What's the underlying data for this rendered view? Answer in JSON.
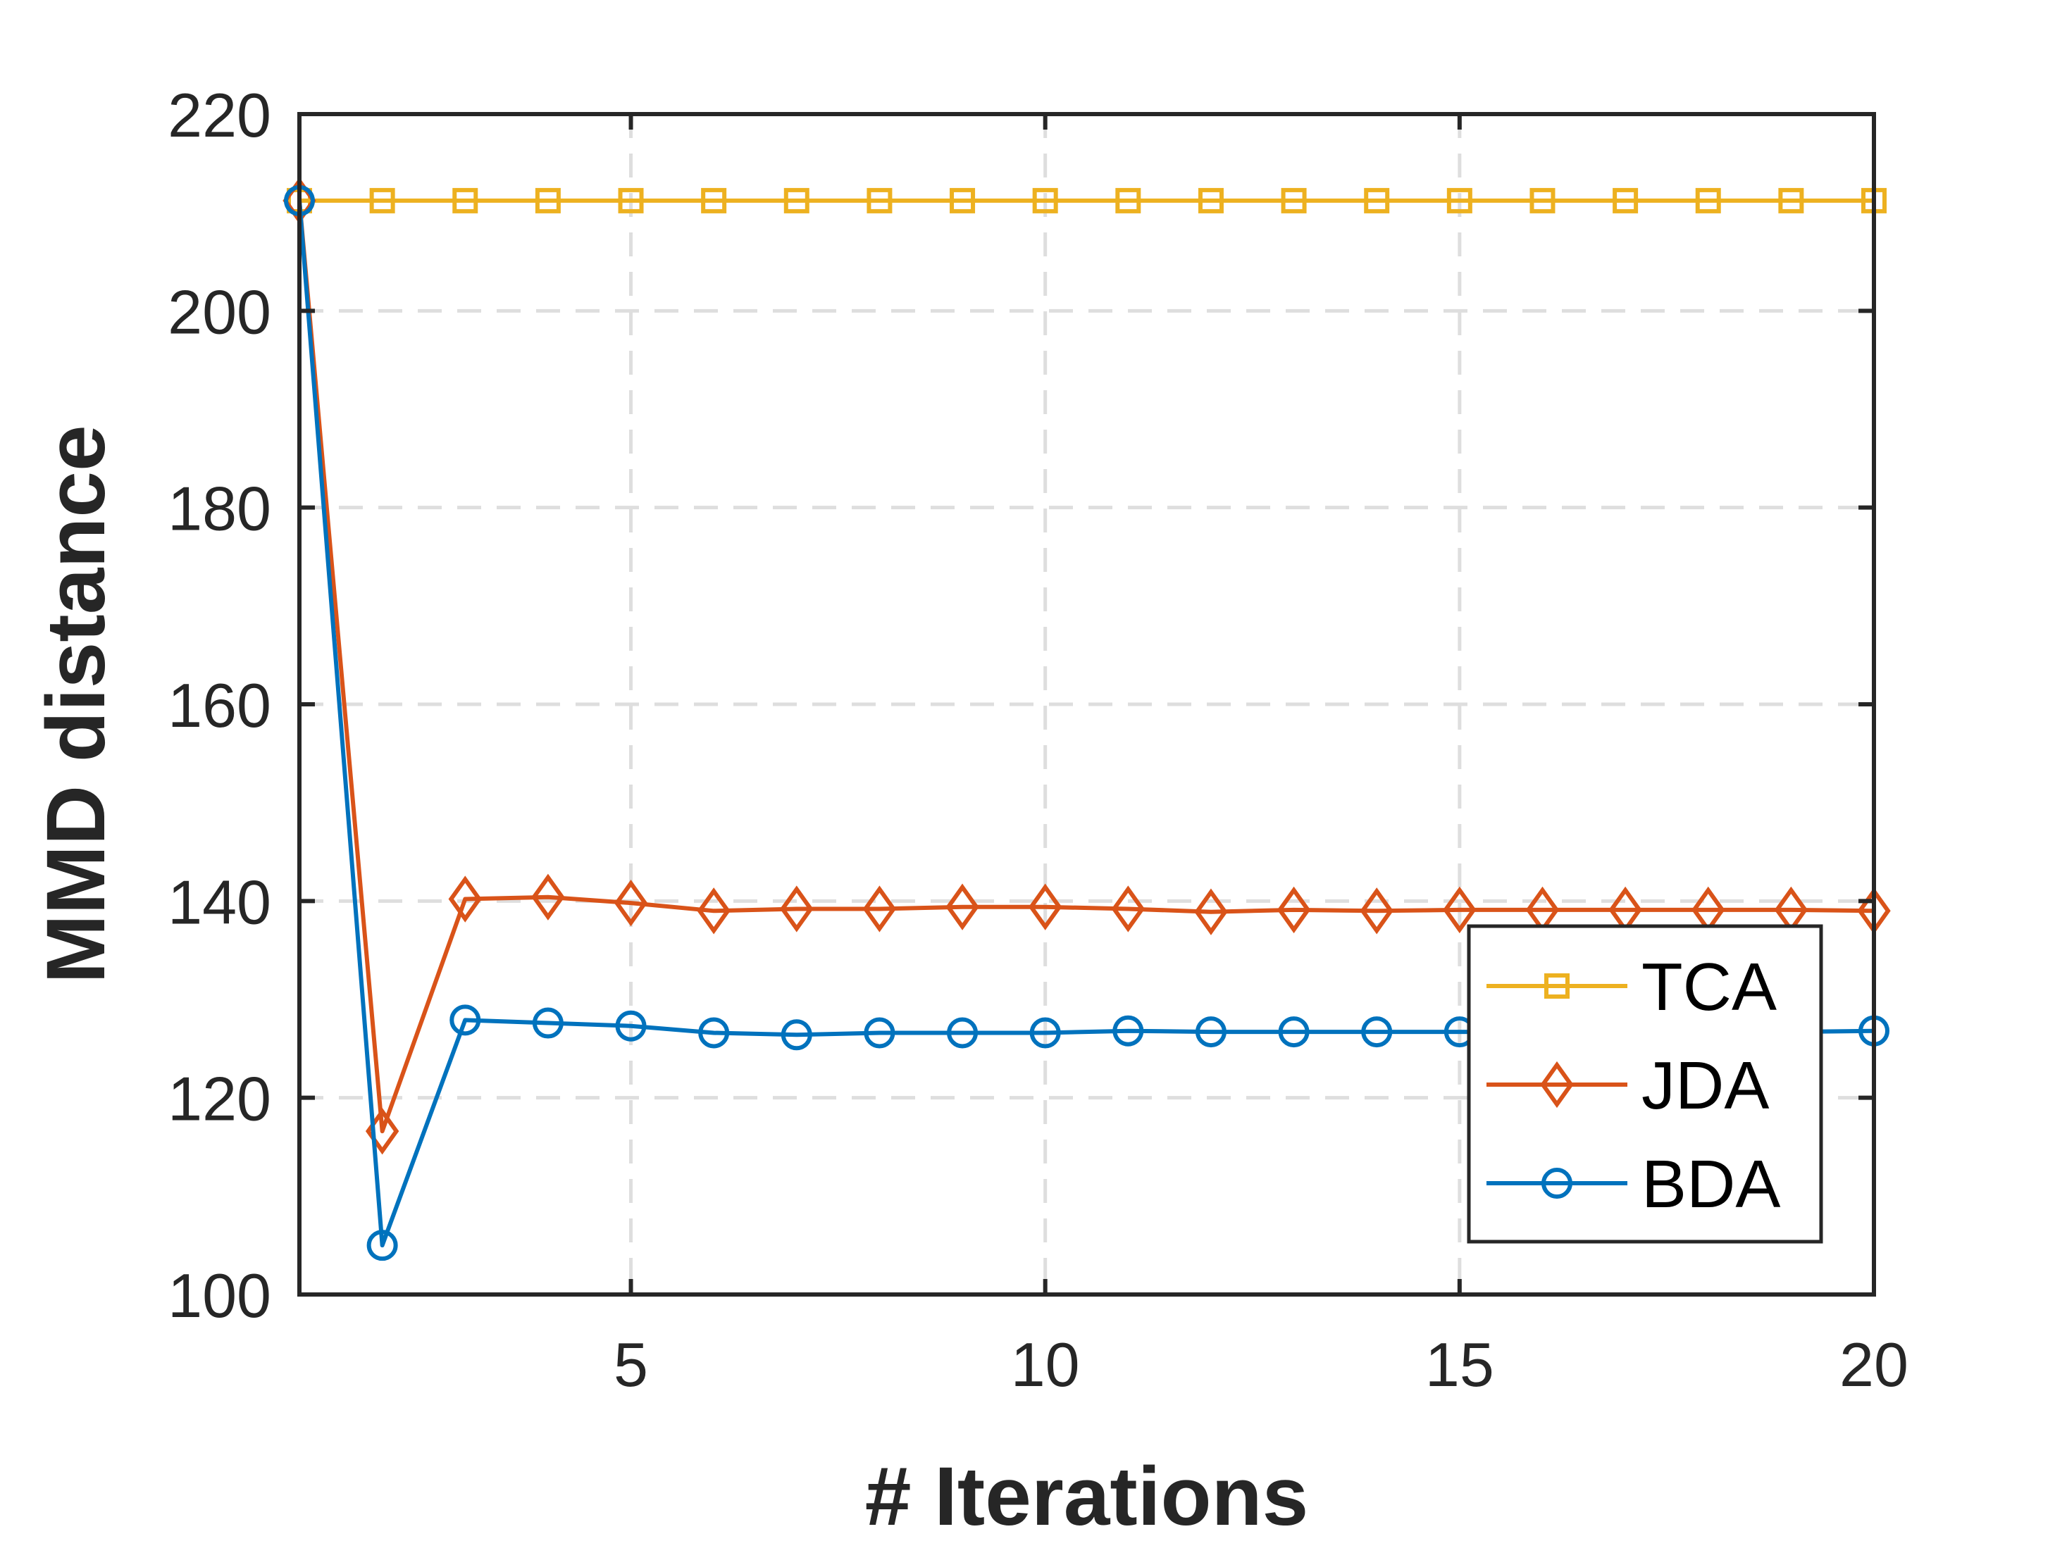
{
  "chart_data": {
    "type": "line",
    "title": "",
    "xlabel": "# Iterations",
    "ylabel": "MMD distance",
    "xlim": [
      1,
      20
    ],
    "ylim": [
      100,
      220
    ],
    "xticks": [
      5,
      10,
      15,
      20
    ],
    "yticks": [
      100,
      120,
      140,
      160,
      180,
      200,
      220
    ],
    "grid": true,
    "legend_position": "bottom-right",
    "x": [
      1,
      2,
      3,
      4,
      5,
      6,
      7,
      8,
      9,
      10,
      11,
      12,
      13,
      14,
      15,
      16,
      17,
      18,
      19,
      20
    ],
    "series": [
      {
        "name": "TCA",
        "color": "#EDB120",
        "marker": "square",
        "values": [
          211.2,
          211.2,
          211.2,
          211.2,
          211.2,
          211.2,
          211.2,
          211.2,
          211.2,
          211.2,
          211.2,
          211.2,
          211.2,
          211.2,
          211.2,
          211.2,
          211.2,
          211.2,
          211.2,
          211.2
        ]
      },
      {
        "name": "JDA",
        "color": "#D95319",
        "marker": "diamond",
        "values": [
          211.2,
          116.6,
          140.2,
          140.4,
          139.8,
          139.0,
          139.2,
          139.2,
          139.4,
          139.4,
          139.2,
          138.9,
          139.1,
          139.0,
          139.1,
          139.1,
          139.1,
          139.1,
          139.1,
          139.0
        ]
      },
      {
        "name": "BDA",
        "color": "#0072BD",
        "marker": "circle",
        "values": [
          211.2,
          105.0,
          127.9,
          127.6,
          127.3,
          126.6,
          126.4,
          126.6,
          126.6,
          126.6,
          126.8,
          126.7,
          126.7,
          126.7,
          126.7,
          126.7,
          126.7,
          126.7,
          126.7,
          126.8
        ]
      }
    ]
  }
}
